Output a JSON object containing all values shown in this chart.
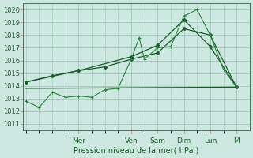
{
  "bg_color": "#cde8e0",
  "grid_color": "#a0c8bc",
  "line_color_dark": "#1a5c2a",
  "line_color_mid": "#2d8040",
  "xlabel": "Pression niveau de la mer( hPa )",
  "ylim": [
    1010.5,
    1020.5
  ],
  "yticks": [
    1011,
    1012,
    1013,
    1014,
    1015,
    1016,
    1017,
    1018,
    1019,
    1020
  ],
  "day_labels": [
    "Mer",
    "Ven",
    "Sam",
    "Dim",
    "Lun",
    "M"
  ],
  "day_positions": [
    2.0,
    4.0,
    5.0,
    6.0,
    7.0,
    8.0
  ],
  "xlim": [
    -0.1,
    8.5
  ],
  "series1_x": [
    0,
    0.5,
    1.0,
    1.5,
    2.0,
    2.5,
    3.0,
    3.5,
    4.0,
    4.3,
    4.5,
    5.0,
    5.5,
    6.0,
    6.5,
    7.0,
    7.5,
    8.0
  ],
  "series1_y": [
    1012.8,
    1012.3,
    1013.5,
    1013.1,
    1013.2,
    1013.1,
    1013.7,
    1013.8,
    1016.1,
    1017.8,
    1016.1,
    1017.0,
    1017.1,
    1019.5,
    1020.0,
    1018.0,
    1015.3,
    1013.9
  ],
  "series2_x": [
    0,
    1.0,
    2.0,
    3.0,
    4.0,
    5.0,
    6.0,
    7.0,
    8.0
  ],
  "series2_y": [
    1014.3,
    1014.8,
    1015.2,
    1015.5,
    1016.1,
    1016.6,
    1018.5,
    1018.0,
    1013.9
  ],
  "series3_x": [
    0,
    8.0
  ],
  "series3_y": [
    1013.8,
    1013.9
  ],
  "series4_x": [
    0,
    2.0,
    4.0,
    5.0,
    6.0,
    7.0,
    8.0
  ],
  "series4_y": [
    1014.3,
    1015.2,
    1016.3,
    1017.2,
    1019.2,
    1017.1,
    1013.9
  ]
}
